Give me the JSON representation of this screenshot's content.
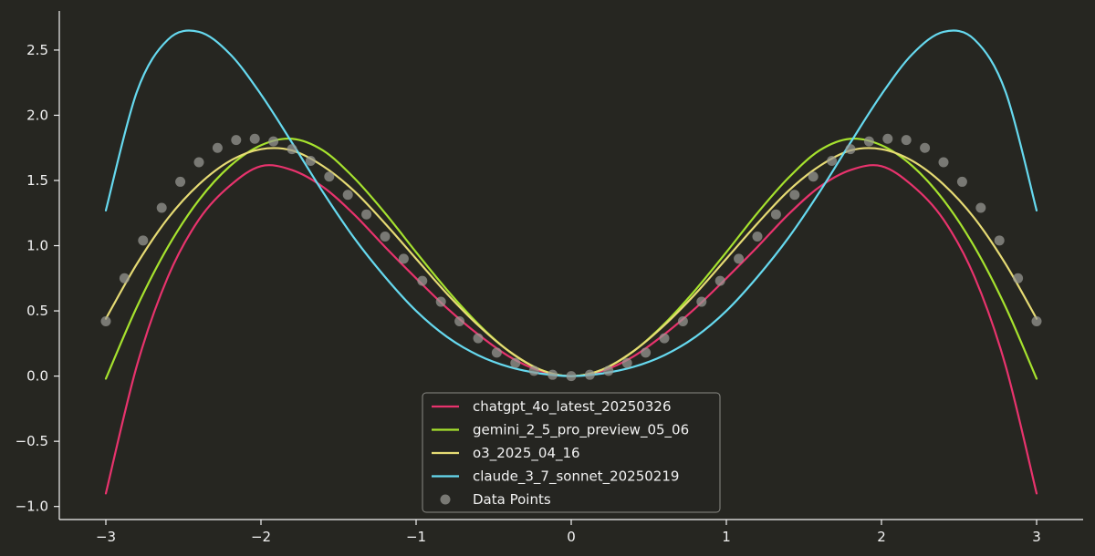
{
  "chart_data": {
    "type": "line",
    "title": "",
    "xlabel": "",
    "ylabel": "",
    "xlim": [
      -3.3,
      3.3
    ],
    "ylim": [
      -1.1,
      2.8
    ],
    "grid": false,
    "background": "#262621",
    "axis_color": "#f2f2f2",
    "legend_position": "bottom-center",
    "x_ticks": [
      -3,
      -2,
      -1,
      0,
      1,
      2,
      3
    ],
    "x_tick_labels": [
      "−3",
      "−2",
      "−1",
      "0",
      "1",
      "2",
      "3"
    ],
    "y_ticks": [
      -1.0,
      -0.5,
      0.0,
      0.5,
      1.0,
      1.5,
      2.0,
      2.5
    ],
    "y_tick_labels": [
      "−1.0",
      "−0.5",
      "0.0",
      "0.5",
      "1.0",
      "1.5",
      "2.0",
      "2.5"
    ],
    "series": [
      {
        "name": "chatgpt_4o_latest_20250326",
        "color": "#e8336d",
        "x": [
          -3.0,
          -2.8,
          -2.6,
          -2.4,
          -2.2,
          -2.0,
          -1.8,
          -1.6,
          -1.4,
          -1.2,
          -1.0,
          -0.8,
          -0.6,
          -0.4,
          -0.2,
          0.0,
          0.2,
          0.4,
          0.6,
          0.8,
          1.0,
          1.2,
          1.4,
          1.6,
          1.8,
          2.0,
          2.2,
          2.4,
          2.6,
          2.8,
          3.0
        ],
        "y": [
          -0.9,
          0.08,
          0.76,
          1.2,
          1.46,
          1.61,
          1.58,
          1.45,
          1.24,
          0.99,
          0.75,
          0.52,
          0.32,
          0.15,
          0.04,
          0.0,
          0.04,
          0.15,
          0.32,
          0.52,
          0.75,
          0.99,
          1.24,
          1.45,
          1.58,
          1.61,
          1.46,
          1.2,
          0.76,
          0.08,
          -0.9
        ]
      },
      {
        "name": "gemini_2_5_pro_preview_05_06",
        "color": "#a6e22e",
        "x": [
          -3.0,
          -2.8,
          -2.6,
          -2.4,
          -2.2,
          -2.0,
          -1.8,
          -1.6,
          -1.4,
          -1.2,
          -1.0,
          -0.8,
          -0.6,
          -0.4,
          -0.2,
          0.0,
          0.2,
          0.4,
          0.6,
          0.8,
          1.0,
          1.2,
          1.4,
          1.6,
          1.8,
          2.0,
          2.2,
          2.4,
          2.6,
          2.8,
          3.0
        ],
        "y": [
          -0.02,
          0.53,
          0.99,
          1.35,
          1.61,
          1.77,
          1.82,
          1.73,
          1.52,
          1.25,
          0.95,
          0.66,
          0.4,
          0.19,
          0.05,
          0.0,
          0.05,
          0.19,
          0.4,
          0.66,
          0.95,
          1.25,
          1.52,
          1.73,
          1.82,
          1.77,
          1.61,
          1.35,
          0.99,
          0.53,
          -0.02
        ]
      },
      {
        "name": "o3_2025_04_16",
        "color": "#e6db74",
        "x": [
          -3.0,
          -2.8,
          -2.6,
          -2.4,
          -2.2,
          -2.0,
          -1.8,
          -1.6,
          -1.4,
          -1.2,
          -1.0,
          -0.8,
          -0.6,
          -0.4,
          -0.2,
          0.0,
          0.2,
          0.4,
          0.6,
          0.8,
          1.0,
          1.2,
          1.4,
          1.6,
          1.8,
          2.0,
          2.2,
          2.4,
          2.6,
          2.8,
          3.0
        ],
        "y": [
          0.44,
          0.86,
          1.21,
          1.47,
          1.65,
          1.74,
          1.73,
          1.61,
          1.42,
          1.17,
          0.9,
          0.63,
          0.39,
          0.19,
          0.05,
          0.0,
          0.05,
          0.19,
          0.39,
          0.63,
          0.9,
          1.17,
          1.42,
          1.61,
          1.73,
          1.74,
          1.65,
          1.47,
          1.21,
          0.86,
          0.44
        ]
      },
      {
        "name": "claude_3_7_sonnet_20250219",
        "color": "#66d9ef",
        "x": [
          -3.0,
          -2.8,
          -2.6,
          -2.4,
          -2.2,
          -2.0,
          -1.8,
          -1.6,
          -1.4,
          -1.2,
          -1.0,
          -0.8,
          -0.6,
          -0.4,
          -0.2,
          0.0,
          0.2,
          0.4,
          0.6,
          0.8,
          1.0,
          1.2,
          1.4,
          1.6,
          1.8,
          2.0,
          2.2,
          2.4,
          2.6,
          2.8,
          3.0
        ],
        "y": [
          1.27,
          2.18,
          2.58,
          2.64,
          2.47,
          2.16,
          1.79,
          1.41,
          1.06,
          0.76,
          0.5,
          0.3,
          0.16,
          0.07,
          0.02,
          0.0,
          0.02,
          0.07,
          0.16,
          0.3,
          0.5,
          0.76,
          1.06,
          1.41,
          1.79,
          2.16,
          2.47,
          2.64,
          2.58,
          2.18,
          1.27
        ]
      }
    ],
    "scatter": {
      "name": "Data Points",
      "color": "#9a9a94",
      "x": [
        -3.0,
        -2.88,
        -2.76,
        -2.64,
        -2.52,
        -2.4,
        -2.28,
        -2.16,
        -2.04,
        -1.92,
        -1.8,
        -1.68,
        -1.56,
        -1.44,
        -1.32,
        -1.2,
        -1.08,
        -0.96,
        -0.84,
        -0.72,
        -0.6,
        -0.48,
        -0.36,
        -0.24,
        -0.12,
        0.0,
        0.12,
        0.24,
        0.36,
        0.48,
        0.6,
        0.72,
        0.84,
        0.96,
        1.08,
        1.2,
        1.32,
        1.44,
        1.56,
        1.68,
        1.8,
        1.92,
        2.04,
        2.16,
        2.28,
        2.4,
        2.52,
        2.64,
        2.76,
        2.88,
        3.0
      ],
      "y": [
        0.42,
        0.75,
        1.04,
        1.29,
        1.49,
        1.64,
        1.75,
        1.81,
        1.82,
        1.8,
        1.74,
        1.65,
        1.53,
        1.39,
        1.24,
        1.07,
        0.9,
        0.73,
        0.57,
        0.42,
        0.29,
        0.18,
        0.1,
        0.04,
        0.01,
        0.0,
        0.01,
        0.04,
        0.1,
        0.18,
        0.29,
        0.42,
        0.57,
        0.73,
        0.9,
        1.07,
        1.24,
        1.39,
        1.53,
        1.65,
        1.74,
        1.8,
        1.82,
        1.81,
        1.75,
        1.64,
        1.49,
        1.29,
        1.04,
        0.75,
        0.42
      ]
    }
  }
}
